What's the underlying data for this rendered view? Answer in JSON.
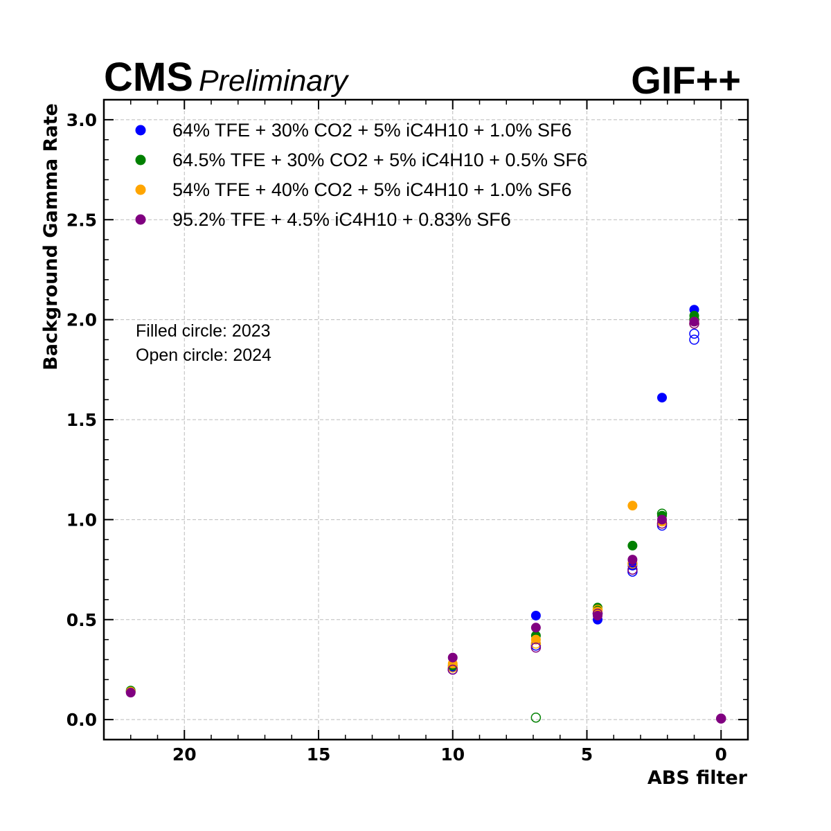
{
  "header": {
    "experiment": "CMS",
    "status": "Preliminary",
    "facility": "GIF++"
  },
  "notes": {
    "line1": "Filled circle: 2023",
    "line2": "Open circle: 2024"
  },
  "chart_data": {
    "type": "scatter",
    "xlabel": "ABS filter",
    "ylabel": "Background Gamma Rate",
    "xlim": [
      23,
      -1
    ],
    "x_reversed": true,
    "ylim": [
      -0.1,
      3.1
    ],
    "xticks": [
      20,
      15,
      10,
      5,
      0
    ],
    "yticks": [
      0.0,
      0.5,
      1.0,
      1.5,
      2.0,
      2.5,
      3.0
    ],
    "ytick_labels": [
      "0.0",
      "0.5",
      "1.0",
      "1.5",
      "2.0",
      "2.5",
      "3.0"
    ],
    "grid": true,
    "legend_position": "top-left",
    "series": [
      {
        "name": "64% TFE + 30% CO2 + 5% iC4H10 + 1.0% SF6",
        "color": "#0000ff",
        "filled": [
          [
            22,
            0.14
          ],
          [
            10,
            0.26
          ],
          [
            6.9,
            0.52
          ],
          [
            4.6,
            0.5
          ],
          [
            3.3,
            0.77
          ],
          [
            2.2,
            1.61
          ],
          [
            1,
            2.05
          ]
        ],
        "open": [
          [
            10,
            0.25
          ],
          [
            6.9,
            0.37
          ],
          [
            4.6,
            0.53
          ],
          [
            3.3,
            0.74
          ],
          [
            2.2,
            0.97
          ],
          [
            1,
            1.9
          ],
          [
            1,
            1.93
          ]
        ]
      },
      {
        "name": "64.5% TFE + 30% CO2 + 5% iC4H10 + 0.5% SF6",
        "color": "#008000",
        "filled": [
          [
            22,
            0.145
          ],
          [
            10,
            0.27
          ],
          [
            6.9,
            0.42
          ],
          [
            4.6,
            0.56
          ],
          [
            3.3,
            0.87
          ],
          [
            2.2,
            1.02
          ],
          [
            1,
            2.02
          ]
        ],
        "open": [
          [
            6.9,
            0.01
          ],
          [
            2.2,
            1.03
          ],
          [
            1,
            2.0
          ]
        ]
      },
      {
        "name": "54% TFE + 40% CO2 + 5% iC4H10 + 1.0% SF6",
        "color": "#ffa500",
        "filled": [
          [
            22,
            0.14
          ],
          [
            10,
            0.28
          ],
          [
            6.9,
            0.4
          ],
          [
            4.6,
            0.54
          ],
          [
            3.3,
            1.07
          ],
          [
            2.2,
            0.99
          ],
          [
            1,
            1.99
          ]
        ],
        "open": [
          [
            10,
            0.26
          ],
          [
            6.9,
            0.38
          ],
          [
            4.6,
            0.55
          ],
          [
            3.3,
            0.78
          ],
          [
            2.2,
            0.98
          ],
          [
            1,
            1.98
          ]
        ]
      },
      {
        "name": "95.2% TFE + 4.5% iC4H10 + 0.83% SF6",
        "color": "#800080",
        "filled": [
          [
            22,
            0.135
          ],
          [
            10,
            0.31
          ],
          [
            6.9,
            0.46
          ],
          [
            4.6,
            0.52
          ],
          [
            3.3,
            0.8
          ],
          [
            2.2,
            1.0
          ],
          [
            1,
            1.99
          ],
          [
            0,
            0.005
          ]
        ],
        "open": [
          [
            10,
            0.25
          ],
          [
            6.9,
            0.36
          ],
          [
            4.6,
            0.53
          ],
          [
            3.3,
            0.75
          ],
          [
            2.2,
            0.98
          ],
          [
            1,
            1.98
          ],
          [
            0,
            0.005
          ]
        ]
      }
    ]
  }
}
